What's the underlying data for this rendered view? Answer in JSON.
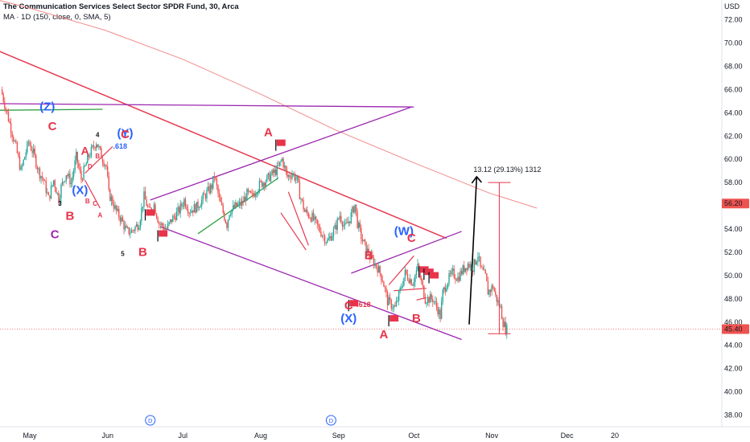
{
  "header": {
    "title": "The Communication Services Select Sector SPDR Fund, 30, Arca",
    "indicator": "MA · 1D (150, close, 0, SMA, 5)"
  },
  "colors": {
    "up": "#26a69a",
    "down": "#ef5350",
    "wave_red": "#e8334a",
    "wave_blue": "#2962ff",
    "channel_purple": "#9c27b0",
    "trend_red": "#e53950",
    "support_green": "#2ea043",
    "ma": "#f28b8b",
    "price_badge": "#ef5350"
  },
  "chart_data": {
    "type": "candlestick",
    "currency_label": "USD",
    "y_ticks": [
      "72.00",
      "70.00",
      "68.00",
      "66.00",
      "64.00",
      "62.00",
      "60.00",
      "58.00",
      "56.00",
      "54.00",
      "52.00",
      "50.00",
      "48.00",
      "46.00",
      "44.00",
      "42.00",
      "40.00",
      "38.00"
    ],
    "ylim": [
      37,
      73.7
    ],
    "x_ticks": [
      {
        "label": "May",
        "day": 0
      },
      {
        "label": "Jun",
        "day": 31
      },
      {
        "label": "Jul",
        "day": 61
      },
      {
        "label": "Aug",
        "day": 92
      },
      {
        "label": "Sep",
        "day": 123
      },
      {
        "label": "Oct",
        "day": 153
      },
      {
        "label": "Nov",
        "day": 184
      },
      {
        "label": "Dec",
        "day": 214
      },
      {
        "label": "20",
        "day": 233
      }
    ],
    "last_price": "45.40",
    "alert_price": "56.20",
    "price_path": [
      [
        -11,
        66.0
      ],
      [
        -8,
        63.5
      ],
      [
        -5,
        61.0
      ],
      [
        -3,
        59.0
      ],
      [
        0,
        61.5
      ],
      [
        2,
        60.5
      ],
      [
        4,
        59.0
      ],
      [
        6,
        58.2
      ],
      [
        8,
        56.6
      ],
      [
        10,
        58.2
      ],
      [
        12,
        56.6
      ],
      [
        13,
        57.6
      ],
      [
        15,
        58.8
      ],
      [
        17,
        58.0
      ],
      [
        19,
        60.2
      ],
      [
        21,
        58.3
      ],
      [
        24,
        60.3
      ],
      [
        27,
        61.5
      ],
      [
        29,
        60.3
      ],
      [
        31,
        59.4
      ],
      [
        32,
        57.0
      ],
      [
        33,
        56.6
      ],
      [
        35,
        55.5
      ],
      [
        37,
        54.8
      ],
      [
        39,
        53.8
      ],
      [
        41,
        53.8
      ],
      [
        44,
        54.5
      ],
      [
        46,
        56.8
      ],
      [
        48,
        55.5
      ],
      [
        50,
        56.1
      ],
      [
        52,
        54.5
      ],
      [
        55,
        54.0
      ],
      [
        57,
        54.8
      ],
      [
        60,
        55.6
      ],
      [
        62,
        56.5
      ],
      [
        64,
        55.6
      ],
      [
        67,
        55.9
      ],
      [
        70,
        56.8
      ],
      [
        73,
        57.7
      ],
      [
        74,
        58.6
      ],
      [
        76,
        56.5
      ],
      [
        79,
        54.4
      ],
      [
        80,
        55.5
      ],
      [
        83,
        56.0
      ],
      [
        85,
        56.2
      ],
      [
        87,
        57.0
      ],
      [
        89,
        56.8
      ],
      [
        92,
        57.8
      ],
      [
        95,
        58.3
      ],
      [
        99,
        59.1
      ],
      [
        101,
        60.0
      ],
      [
        103,
        58.5
      ],
      [
        105,
        58.8
      ],
      [
        107,
        58.2
      ],
      [
        108,
        57.0
      ],
      [
        110,
        55.5
      ],
      [
        113,
        55.0
      ],
      [
        116,
        53.9
      ],
      [
        119,
        52.9
      ],
      [
        122,
        54.0
      ],
      [
        124,
        55.2
      ],
      [
        126,
        54.1
      ],
      [
        128,
        54.9
      ],
      [
        130,
        56.1
      ],
      [
        131,
        54.5
      ],
      [
        133,
        53.0
      ],
      [
        136,
        51.6
      ],
      [
        139,
        50.7
      ],
      [
        141,
        49.7
      ],
      [
        143,
        47.8
      ],
      [
        146,
        47.2
      ],
      [
        148,
        48.7
      ],
      [
        150,
        50.2
      ],
      [
        153,
        49.4
      ],
      [
        155,
        50.7
      ],
      [
        158,
        48.0
      ],
      [
        161,
        48.0
      ],
      [
        163,
        47.1
      ],
      [
        164,
        46.5
      ],
      [
        165,
        48.5
      ],
      [
        167,
        49.6
      ],
      [
        169,
        50.2
      ],
      [
        171,
        49.8
      ],
      [
        173,
        50.5
      ],
      [
        175,
        51.0
      ],
      [
        177,
        50.7
      ],
      [
        179,
        51.8
      ],
      [
        180,
        50.6
      ],
      [
        182,
        49.9
      ],
      [
        183,
        48.6
      ],
      [
        184,
        48.8
      ],
      [
        185,
        49.1
      ],
      [
        186,
        48.2
      ],
      [
        188,
        47.2
      ],
      [
        189,
        46.0
      ],
      [
        190,
        45.4
      ]
    ],
    "moving_average": [
      [
        -20,
        74.1
      ],
      [
        0,
        73.0
      ],
      [
        30,
        71.1
      ],
      [
        61,
        68.6
      ],
      [
        92,
        65.6
      ],
      [
        122,
        62.5
      ],
      [
        153,
        59.7
      ],
      [
        183,
        57.1
      ],
      [
        202,
        55.8
      ]
    ],
    "wave_labels": [
      {
        "text": "(Z)",
        "day": 7,
        "price": 64.2,
        "color": "blue",
        "size": 15
      },
      {
        "text": "C",
        "day": 9,
        "price": 62.5,
        "color": "red",
        "size": 15
      },
      {
        "text": "A",
        "day": 22,
        "price": 60.4,
        "color": "red",
        "size": 14
      },
      {
        "text": "B",
        "day": 27,
        "price": 60.1,
        "color": "red",
        "size": 8
      },
      {
        "text": "D",
        "day": 24,
        "price": 59.2,
        "color": "red",
        "size": 8
      },
      {
        "text": "4",
        "day": 27,
        "price": 61.9,
        "color": "black",
        "size": 8
      },
      {
        "text": "(Y)",
        "day": 38,
        "price": 61.9,
        "color": "blue",
        "size": 15
      },
      {
        "text": "C",
        "day": 38,
        "price": 61.8,
        "color": "red",
        "size": 15
      },
      {
        "text": ".618",
        "day": 36,
        "price": 60.9,
        "color": "blue",
        "size": 9
      },
      {
        "text": "(X)",
        "day": 20,
        "price": 57.0,
        "color": "blue",
        "size": 15
      },
      {
        "text": "B",
        "day": 23,
        "price": 56.2,
        "color": "red",
        "size": 8
      },
      {
        "text": "C",
        "day": 26,
        "price": 56.0,
        "color": "red",
        "size": 8
      },
      {
        "text": "A",
        "day": 28,
        "price": 55.0,
        "color": "red",
        "size": 8
      },
      {
        "text": "3",
        "day": 12,
        "price": 56.0,
        "color": "black",
        "size": 8
      },
      {
        "text": "B",
        "day": 16,
        "price": 54.8,
        "color": "red",
        "size": 15
      },
      {
        "text": "C",
        "day": 10,
        "price": 53.2,
        "color": "purple",
        "size": 15
      },
      {
        "text": "5",
        "day": 37,
        "price": 51.7,
        "color": "black",
        "size": 8
      },
      {
        "text": "B",
        "day": 45,
        "price": 51.7,
        "color": "red",
        "size": 15
      },
      {
        "text": "A",
        "day": 95,
        "price": 62.0,
        "color": "red",
        "size": 15
      },
      {
        "text": "(W)",
        "day": 149,
        "price": 53.5,
        "color": "blue",
        "size": 15
      },
      {
        "text": "C",
        "day": 152,
        "price": 52.9,
        "color": "red",
        "size": 15
      },
      {
        "text": "B",
        "day": 135,
        "price": 51.4,
        "color": "red",
        "size": 15
      },
      {
        "text": "C",
        "day": 127,
        "price": 47.1,
        "color": "red",
        "size": 15
      },
      {
        "text": ".618",
        "day": 133,
        "price": 47.3,
        "color": "red",
        "size": 9
      },
      {
        "text": "(X)",
        "day": 127,
        "price": 46.0,
        "color": "blue",
        "size": 15
      },
      {
        "text": "A",
        "day": 141,
        "price": 44.6,
        "color": "red",
        "size": 15
      },
      {
        "text": "B",
        "day": 154,
        "price": 46.0,
        "color": "red",
        "size": 15
      }
    ],
    "trend_lines": [
      {
        "color": "trend_red",
        "width": 1.5,
        "points": [
          [
            -20,
            70.0
          ],
          [
            166,
            53.2
          ]
        ]
      },
      {
        "color": "channel_purple",
        "width": 1.3,
        "points": [
          [
            -20,
            64.8
          ],
          [
            153,
            64.5
          ]
        ]
      },
      {
        "color": "channel_purple",
        "width": 1.3,
        "points": [
          [
            48,
            56.5
          ],
          [
            152,
            64.5
          ]
        ]
      },
      {
        "color": "channel_purple",
        "width": 1.3,
        "points": [
          [
            52,
            54.2
          ],
          [
            172,
            44.5
          ]
        ]
      },
      {
        "color": "channel_purple",
        "width": 1.3,
        "points": [
          [
            128,
            50.2
          ],
          [
            172,
            53.8
          ]
        ]
      },
      {
        "color": "support_green",
        "width": 1.3,
        "points": [
          [
            -20,
            64.2
          ],
          [
            29,
            64.3
          ]
        ]
      },
      {
        "color": "support_green",
        "width": 1.3,
        "points": [
          [
            67,
            53.6
          ],
          [
            99,
            58.4
          ]
        ]
      },
      {
        "color": "trend_red",
        "width": 1.2,
        "points": [
          [
            22,
            58.8
          ],
          [
            33,
            61.1
          ]
        ]
      },
      {
        "color": "trend_red",
        "width": 1.2,
        "points": [
          [
            22,
            58.2
          ],
          [
            28,
            55.8
          ]
        ]
      },
      {
        "color": "trend_red",
        "width": 1.2,
        "points": [
          [
            103,
            57.2
          ],
          [
            111,
            52.6
          ]
        ]
      },
      {
        "color": "trend_red",
        "width": 1.2,
        "points": [
          [
            100,
            55.4
          ],
          [
            110,
            52.2
          ]
        ]
      },
      {
        "color": "trend_red",
        "width": 1.2,
        "points": [
          [
            143,
            49.2
          ],
          [
            153,
            51.7
          ]
        ]
      },
      {
        "color": "trend_red",
        "width": 1.2,
        "points": [
          [
            145,
            48.7
          ],
          [
            158,
            48.9
          ]
        ]
      },
      {
        "color": "trend_red",
        "width": 1.2,
        "points": [
          [
            154,
            47.9
          ],
          [
            158,
            48.1
          ]
        ]
      }
    ],
    "flags": [
      {
        "day": 46,
        "price": 55.7
      },
      {
        "day": 51,
        "price": 53.9
      },
      {
        "day": 98,
        "price": 61.7
      },
      {
        "day": 127,
        "price": 47.9
      },
      {
        "day": 143,
        "price": 46.6
      },
      {
        "day": 155,
        "price": 50.8
      },
      {
        "day": 157,
        "price": 50.6
      },
      {
        "day": 159,
        "price": 50.3
      }
    ],
    "projection": {
      "label": "13.12 (29.13%) 1312",
      "arrow": [
        [
          175,
          45.8
        ],
        [
          178,
          58.5
        ]
      ],
      "range": [
        [
          187,
          45.0
        ],
        [
          187,
          58.0
        ]
      ]
    },
    "event_markers": [
      {
        "label": "D",
        "day": 48
      },
      {
        "label": "D",
        "day": 120
      }
    ]
  }
}
